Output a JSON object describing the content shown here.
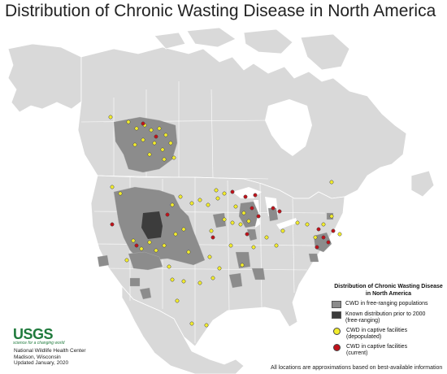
{
  "title": "Distribution of Chronic Wasting Disease in North America",
  "legend": {
    "title_line1": "Distribution of Chronic Wasting Disease",
    "title_line2": "in North America",
    "items": [
      {
        "label1": "CWD in free-ranging populations",
        "label2": "",
        "color": "#8c8c8c"
      },
      {
        "label1": "Known distribution prior to 2000",
        "label2": "(free-ranging)",
        "color": "#3c3c3c"
      },
      {
        "label1": "CWD in captive facilities",
        "label2": "(depopulated)",
        "color": "#f2ec2c"
      },
      {
        "label1": "CWD in captive facilities",
        "label2": "(current)",
        "color": "#c0121a"
      }
    ]
  },
  "logo": {
    "name": "USGS",
    "tagline": "science for a changing world"
  },
  "credit": {
    "line1": "National Wildlife Health Center",
    "line2": "Madison, Wisconsin",
    "line3": "Updated January, 2020"
  },
  "note": "All locations are approximations based on best-available information",
  "colors": {
    "land": "#d9d9d9",
    "water": "#ffffff",
    "border": "#ffffff",
    "free_ranging": "#8c8c8c",
    "pre2000": "#3c3c3c",
    "depopulated": "#f2ec2c",
    "current": "#c0121a"
  }
}
